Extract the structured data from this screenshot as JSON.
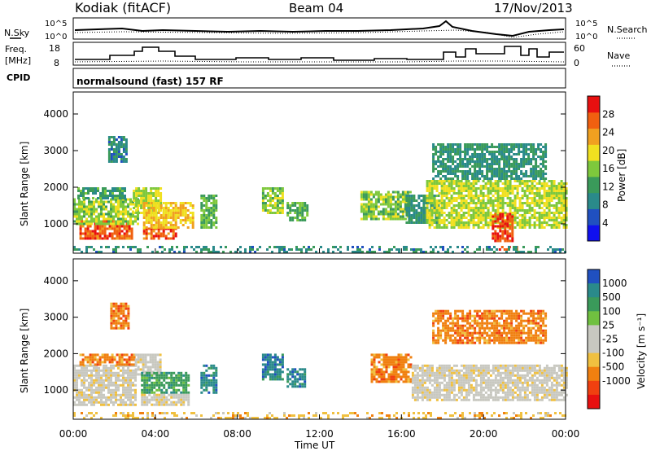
{
  "header": {
    "radar": "Kodiak (fitACF)",
    "beam": "Beam 04",
    "date": "17/Nov/2013"
  },
  "top_panels": {
    "nsky_label": "N.Sky",
    "nsky_ticks": [
      "10^5",
      "10^0"
    ],
    "nsearch_label": "N.Search",
    "nsearch_ticks": [
      "10^5",
      "10^0"
    ],
    "freq_label_line1": "Freq.",
    "freq_label_line2": "[MHz]",
    "freq_ticks": [
      "18",
      "8"
    ],
    "nave_label": "Nave",
    "nave_ticks": [
      "60",
      "0"
    ],
    "cpid_label": "CPID",
    "cpid_text": "normalsound (fast) 157 RF"
  },
  "x_axis": {
    "ticks": [
      "00:00",
      "04:00",
      "08:00",
      "12:00",
      "16:00",
      "20:00",
      "00:00"
    ],
    "label": "Time UT"
  },
  "colors": {
    "power": [
      "#1010ee",
      "#2050c0",
      "#2a8a8a",
      "#3a9a5a",
      "#7ec83c",
      "#f0e020",
      "#f0a020",
      "#f06010",
      "#e81010"
    ],
    "velocity": [
      "#e81010",
      "#f04010",
      "#f08010",
      "#f0c040",
      "#c8c8c0",
      "#c8c8c0",
      "#70c040",
      "#3a9a5a",
      "#2a8a8a",
      "#2050c0"
    ]
  },
  "chart_data": [
    {
      "type": "heatmap",
      "name": "power",
      "ylabel": "Slant Range [km]",
      "yticks": [
        "1000",
        "2000",
        "3000",
        "4000"
      ],
      "ylim": [
        200,
        4600
      ],
      "xlim_hours": [
        0,
        24
      ],
      "colorbar_label": "Power [dB]",
      "colorbar_ticks": [
        "4",
        "8",
        "12",
        "16",
        "20",
        "24",
        "28"
      ],
      "color_range": [
        0,
        32
      ],
      "blobs": [
        {
          "t0": 0.3,
          "t1": 2.8,
          "r0": 600,
          "r1": 1100,
          "v": 29
        },
        {
          "t0": 0.0,
          "t1": 3.2,
          "r0": 1000,
          "r1": 1700,
          "v": 17
        },
        {
          "t0": 0.2,
          "t1": 2.5,
          "r0": 1700,
          "r1": 2000,
          "v": 11
        },
        {
          "t0": 1.7,
          "t1": 2.6,
          "r0": 2700,
          "r1": 3400,
          "v": 9
        },
        {
          "t0": 2.9,
          "t1": 4.3,
          "r0": 1300,
          "r1": 2000,
          "v": 18
        },
        {
          "t0": 3.4,
          "t1": 5.0,
          "r0": 600,
          "r1": 900,
          "v": 28
        },
        {
          "t0": 3.4,
          "t1": 5.8,
          "r0": 900,
          "r1": 1600,
          "v": 22
        },
        {
          "t0": 6.2,
          "t1": 7.0,
          "r0": 900,
          "r1": 1800,
          "v": 14
        },
        {
          "t0": 9.2,
          "t1": 10.2,
          "r0": 1300,
          "r1": 2000,
          "v": 16
        },
        {
          "t0": 10.4,
          "t1": 11.4,
          "r0": 1100,
          "r1": 1600,
          "v": 14
        },
        {
          "t0": 14.0,
          "t1": 16.4,
          "r0": 1100,
          "r1": 1900,
          "v": 16
        },
        {
          "t0": 16.2,
          "t1": 17.8,
          "r0": 1000,
          "r1": 1800,
          "v": 10
        },
        {
          "t0": 17.2,
          "t1": 24.0,
          "r0": 900,
          "r1": 2200,
          "v": 18
        },
        {
          "t0": 17.5,
          "t1": 23.0,
          "r0": 2200,
          "r1": 3200,
          "v": 10
        },
        {
          "t0": 20.4,
          "t1": 21.4,
          "r0": 500,
          "r1": 1300,
          "v": 30
        },
        {
          "t0": 20.5,
          "t1": 21.6,
          "r0": 300,
          "r1": 400,
          "v": 30
        },
        {
          "t0": 0.0,
          "t1": 24.0,
          "r0": 200,
          "r1": 400,
          "v": 9
        }
      ]
    },
    {
      "type": "heatmap",
      "name": "velocity",
      "ylabel": "Slant Range [km]",
      "yticks": [
        "1000",
        "2000",
        "3000",
        "4000"
      ],
      "ylim": [
        200,
        4600
      ],
      "xlim_hours": [
        0,
        24
      ],
      "colorbar_label": "Velocity [m s⁻¹]",
      "colorbar_ticks": [
        "1000",
        "500",
        "100",
        "25",
        "-25",
        "-100",
        "-500",
        "-1000"
      ],
      "blobs": [
        {
          "t0": 0.0,
          "t1": 3.0,
          "r0": 600,
          "r1": 1700,
          "c": 4
        },
        {
          "t0": 0.3,
          "t1": 3.0,
          "r0": 1700,
          "r1": 2000,
          "c": 2
        },
        {
          "t0": 1.8,
          "t1": 2.7,
          "r0": 2700,
          "r1": 3400,
          "c": 2
        },
        {
          "t0": 3.0,
          "t1": 4.3,
          "r0": 1400,
          "r1": 2000,
          "c": 4
        },
        {
          "t0": 3.3,
          "t1": 5.6,
          "r0": 900,
          "r1": 1500,
          "c": 7
        },
        {
          "t0": 3.3,
          "t1": 5.6,
          "r0": 600,
          "r1": 900,
          "c": 4
        },
        {
          "t0": 6.2,
          "t1": 7.0,
          "r0": 900,
          "r1": 1700,
          "c": 8
        },
        {
          "t0": 9.2,
          "t1": 10.2,
          "r0": 1300,
          "r1": 2000,
          "c": 8
        },
        {
          "t0": 10.4,
          "t1": 11.3,
          "r0": 1100,
          "r1": 1600,
          "c": 8
        },
        {
          "t0": 14.5,
          "t1": 16.5,
          "r0": 1200,
          "r1": 2000,
          "c": 2
        },
        {
          "t0": 16.5,
          "t1": 24.0,
          "r0": 700,
          "r1": 1700,
          "c": 4
        },
        {
          "t0": 17.5,
          "t1": 23.0,
          "r0": 2300,
          "r1": 3200,
          "c": 2
        },
        {
          "t0": 0.0,
          "t1": 24.0,
          "r0": 200,
          "r1": 400,
          "c": 3
        }
      ]
    }
  ]
}
